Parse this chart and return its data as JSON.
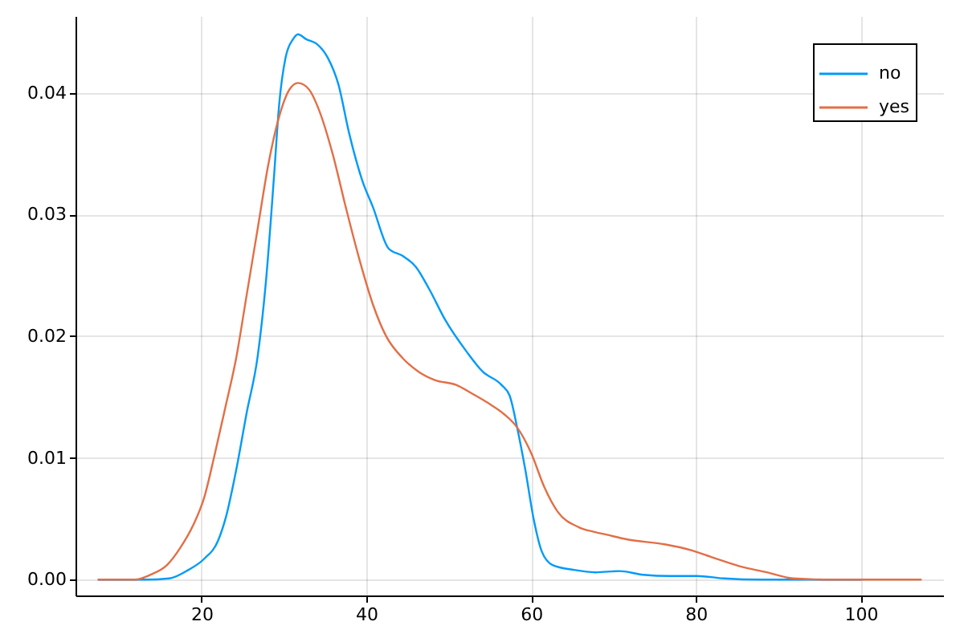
{
  "chart_data": {
    "type": "line",
    "series": [
      {
        "name": "no",
        "color": "#009af9",
        "x": [
          7.5,
          13.2,
          16.1,
          18.4,
          20.3,
          22,
          22.9,
          24.2,
          25.5,
          26.8,
          27.8,
          28.8,
          29.4,
          30.2,
          31.1,
          31.7,
          32.7,
          34,
          35.3,
          36.6,
          37.9,
          39.5,
          40.8,
          42.7,
          44.4,
          46,
          47.6,
          49.6,
          52.2,
          54.1,
          56.4,
          57.4,
          58.3,
          59.3,
          60.3,
          61.3,
          62.6,
          65.2,
          67.8,
          70.7,
          73.6,
          76.9,
          80.1,
          83.4,
          87.9,
          93.7,
          100
        ],
        "values": [
          0,
          0,
          0.0001,
          0.0008,
          0.0017,
          0.0032,
          0.005,
          0.009,
          0.0138,
          0.0183,
          0.0244,
          0.0332,
          0.0389,
          0.0429,
          0.0444,
          0.0448,
          0.0444,
          0.044,
          0.0429,
          0.0407,
          0.0367,
          0.0328,
          0.0306,
          0.0272,
          0.0266,
          0.0257,
          0.0239,
          0.0213,
          0.0187,
          0.0171,
          0.016,
          0.0151,
          0.0125,
          0.009,
          0.005,
          0.0023,
          0.0012,
          0.0008,
          0.0006,
          0.0007,
          0.0004,
          0.0003,
          0.0003,
          0.0001,
          0,
          0,
          0
        ]
      },
      {
        "name": "yes",
        "color": "#e26f46",
        "x": [
          7.5,
          11.9,
          13.8,
          15.8,
          17.4,
          19,
          20.3,
          21.6,
          22.9,
          24.2,
          25.5,
          26.8,
          28.1,
          29.4,
          30.7,
          31.7,
          33,
          34.3,
          35.9,
          37.5,
          39.2,
          40.8,
          42.4,
          44.4,
          46.3,
          48.3,
          50.9,
          52.8,
          54.8,
          56.7,
          58.3,
          60,
          61.6,
          63.2,
          65.8,
          67.8,
          69.1,
          71.7,
          76.2,
          79.5,
          82.1,
          85.3,
          88.6,
          91.8,
          96.4,
          107.3
        ],
        "values": [
          0,
          0,
          0.0004,
          0.0012,
          0.0026,
          0.0045,
          0.0067,
          0.0103,
          0.0142,
          0.0182,
          0.0235,
          0.0288,
          0.0341,
          0.038,
          0.0403,
          0.0408,
          0.0403,
          0.0385,
          0.035,
          0.0306,
          0.0262,
          0.0226,
          0.02,
          0.0182,
          0.0171,
          0.0164,
          0.016,
          0.0153,
          0.0145,
          0.0136,
          0.0125,
          0.0104,
          0.0076,
          0.0056,
          0.0043,
          0.0039,
          0.0037,
          0.0033,
          0.0029,
          0.0024,
          0.0018,
          0.0011,
          0.0006,
          0.0001,
          0,
          0
        ]
      }
    ],
    "xlim": [
      4.7,
      110
    ],
    "ylim": [
      -0.0013,
      0.0463
    ],
    "xticks": [
      20,
      40,
      60,
      80,
      100
    ],
    "yticks": [
      {
        "value": 0,
        "label": "0.00"
      },
      {
        "value": 0.01,
        "label": "0.01"
      },
      {
        "value": 0.02,
        "label": "0.02"
      },
      {
        "value": 0.03,
        "label": "0.03"
      },
      {
        "value": 0.04,
        "label": "0.04"
      }
    ],
    "grid": true,
    "legend": "top right"
  }
}
